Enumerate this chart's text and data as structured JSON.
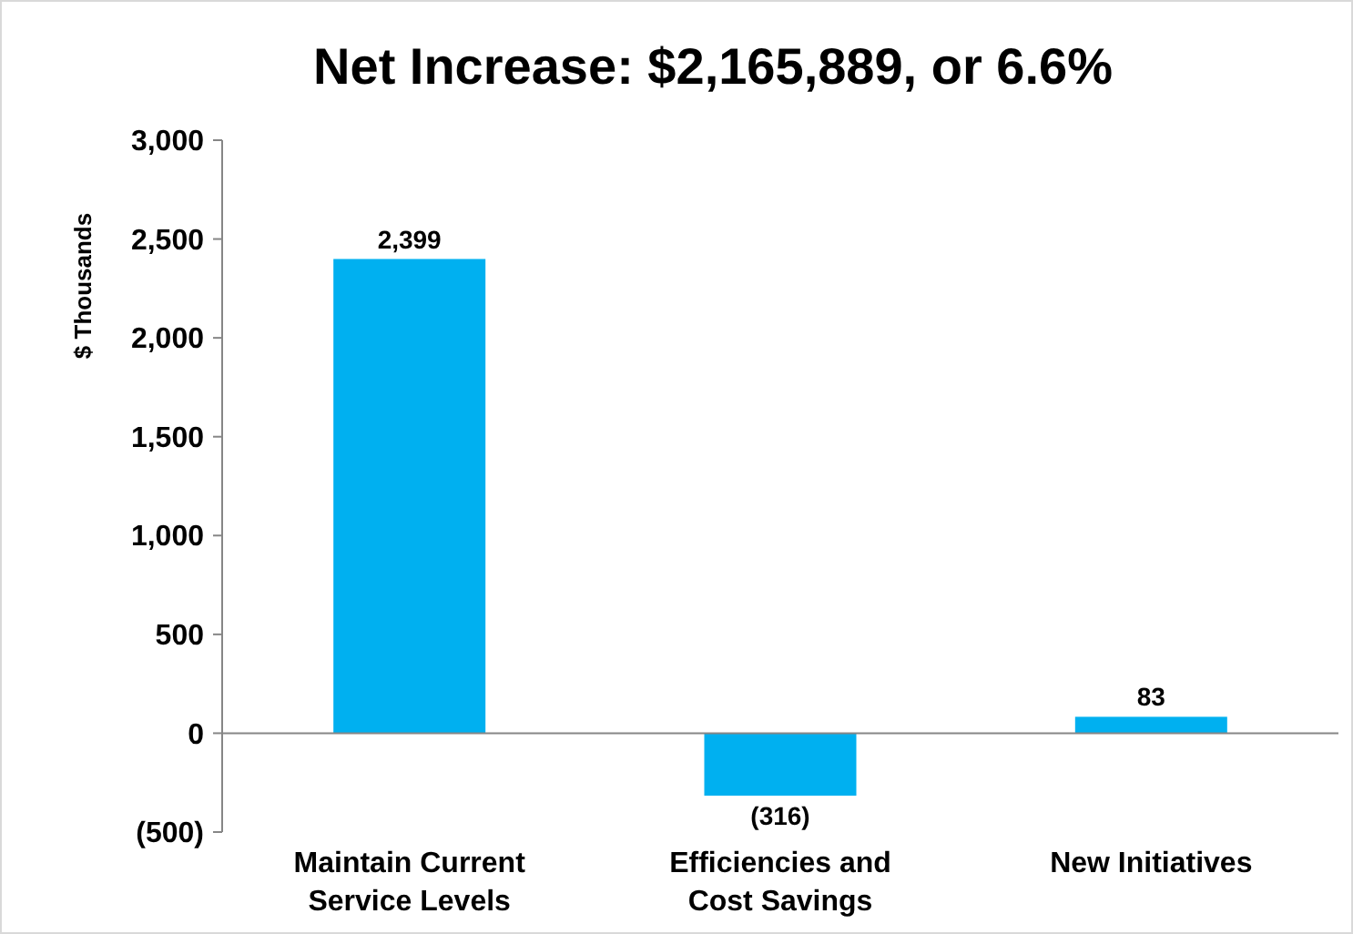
{
  "chart_data": {
    "type": "bar",
    "title": "Net Increase: $2,165,889, or 6.6%",
    "ylabel": "$ Thousands",
    "categories": [
      "Maintain Current\nService Levels",
      "Efficiencies and\nCost Savings",
      "New Initiatives"
    ],
    "values": [
      2399,
      -316,
      83
    ],
    "color": "#00b0f0",
    "value_labels": [
      "2,399",
      "(316)",
      "83"
    ],
    "ylim": [
      -500,
      3000
    ],
    "yticks": [
      {
        "value": -500,
        "label": "(500)"
      },
      0,
      {
        "value": 500,
        "label": "500"
      },
      {
        "value": 1000,
        "label": "1,000"
      },
      {
        "value": 1500,
        "label": "1,500"
      },
      {
        "value": 2000,
        "label": "2,000"
      },
      {
        "value": 2500,
        "label": "2,500"
      },
      {
        "value": 3000,
        "label": "3,000"
      }
    ]
  }
}
